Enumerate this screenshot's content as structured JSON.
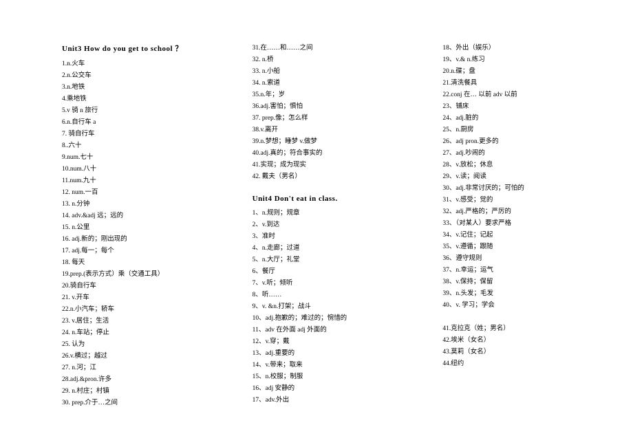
{
  "text_color": "#000000",
  "background_color": "#ffffff",
  "heading_fontsize": 11,
  "body_fontsize": 9.5,
  "line_height": 17,
  "col1": {
    "heading": "Unit3 How do you get to school ？",
    "items": [
      "1.n.火车",
      "2.n.公交车",
      "3.n.地铁",
      "4.乘地铁",
      "5.v 骑 n 旅行",
      "6.n.自行车 a",
      "7.  骑自行车",
      "8..六十",
      "9.num.七十",
      "10.num.八十",
      "11.num.九十",
      "12.  num.一百",
      "13.  n.分钟",
      "14.   adv.&adj 远；远的",
      "15.  n.公里",
      "16.  adj.新的；刚出现的",
      "17.  adj.每一；每个",
      "18.  每天",
      "19.prep.(表示方式）乘（交通工具）",
      "20.骑自行车",
      "21.  v.开车",
      "22.n.小汽车；轿车",
      "23.  v.居住；生活",
      "24.  n.车站；停止",
      "25.  认为",
      "26.v.横过；越过",
      "27.  n.河；江",
      "28.adj.&pron.许多",
      "29.  n.村庄；村镇",
      "30.  prep.介于…之间"
    ]
  },
  "col2": {
    "top_items": [
      "31.在……和……之间",
      "32.  n.桥",
      "33.  n.小船",
      "34.  n.索道",
      "35.n.年；岁",
      "36.adj.害怕；惧怕",
      "37.  prep.像；怎么样",
      "38.v.离开",
      "39.n.梦想；睡梦   v.做梦",
      "40.adj.真的；符合事实的",
      "41.实现；成为现实",
      "42.  戴夫（男名）"
    ],
    "heading": "Unit4 Don't eat in class.",
    "bottom_items": [
      "1、n.规则；规章",
      "2、v.到达",
      "3、准时",
      "4、n.走廊；过道",
      "5、n.大厅；礼堂",
      "6、餐厅",
      "7、v.听；倾听",
      "8、听……",
      "9、v.  &n.打架；战斗",
      "10、adj.抱歉的；难过的；惋惜的",
      "11、adv 在外面 adj  外面的",
      "12、v.穿；戴",
      "13、adj.重要的",
      "14、v.带来；取来",
      "15、n.校服；制服",
      "16、adj 安静的",
      "17、adv.外出"
    ]
  },
  "col3": {
    "items": [
      "18、外出（娱乐）",
      "19、v.&  n.练习",
      "20.n.碟；盘",
      "21.清洗餐具",
      "22.conj 在… 以前  adv 以前",
      "23、铺床",
      "24、adj.脏的",
      "25、n.厨房",
      "26、adj  pron.更多的",
      "27、adj.吵闹的",
      "28、v.放松；休息",
      "29、v.读；阅读",
      "30、adj.非常讨厌的；可怕的",
      "31、v.感受；觉的",
      "32、adj.严格的；严厉的",
      "33、（对某人）要求严格",
      "34、v.记住；记起",
      "35、v.遵循；跟随",
      "36、遵守规则",
      "37、n.幸运；运气",
      "38、v.保持；保留",
      "39、n.头发；毛发",
      "40、v.  学习；学会"
    ],
    "tail_items": [
      "41.克拉克（姓；男名）",
      "42.埃米（女名）",
      "43.莫莉（女名）",
      "44.纽约"
    ]
  }
}
